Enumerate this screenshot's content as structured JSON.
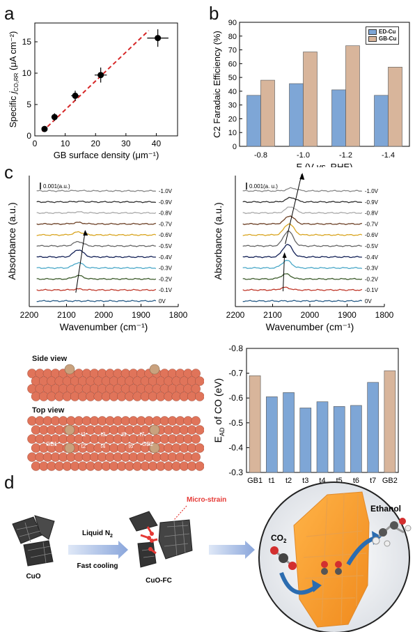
{
  "panels": {
    "a": "a",
    "b": "b",
    "c": "c",
    "d": "d"
  },
  "chart_data": [
    {
      "id": "a",
      "type": "scatter",
      "xlabel": "GB surface density (μm⁻¹)",
      "ylabel_parts": [
        "Specific ",
        "j",
        "CO₂RR",
        "(μA cm⁻²)"
      ],
      "xlim": [
        0,
        47
      ],
      "ylim": [
        0,
        18
      ],
      "xticks": [
        0,
        10,
        20,
        30,
        40
      ],
      "yticks": [
        0,
        5,
        10,
        15
      ],
      "x": [
        3.2,
        6.5,
        13.3,
        21.7,
        40.5
      ],
      "y": [
        1.1,
        3.0,
        6.4,
        9.7,
        15.6
      ],
      "xerr": [
        0.6,
        0.7,
        1.3,
        2.0,
        3.5
      ],
      "yerr": [
        0.3,
        0.6,
        0.8,
        1.2,
        1.4
      ],
      "fit": {
        "x0": 2.5,
        "y0": 0.7,
        "x1": 37.5,
        "y1": 16.8,
        "color": "#d62728"
      }
    },
    {
      "id": "b",
      "type": "bar",
      "title": "",
      "xlabel_parts": [
        "E (V ",
        "vs.",
        ")RHE"
      ],
      "xlabel": "E (V vs. RHE)",
      "ylabel": "C2 Faradaic Efficiency (%)",
      "categories": [
        "-0.8",
        "-1.0",
        "-1.2",
        "-1.4"
      ],
      "ylim": [
        0,
        90
      ],
      "yticks": [
        0,
        10,
        20,
        30,
        40,
        50,
        60,
        70,
        80,
        90
      ],
      "series": [
        {
          "name": "ED-Cu",
          "values": [
            37,
            45.5,
            41,
            37
          ],
          "color": "#7ea6d6"
        },
        {
          "name": "GB-Cu",
          "values": [
            48,
            68.5,
            73,
            57.5
          ],
          "color": "#d8b59b"
        }
      ],
      "legend": "top-right"
    },
    {
      "id": "c1",
      "type": "line",
      "xlabel": "Wavenumber (cm⁻¹)",
      "ylabel": "Absorbance (a.u.)",
      "xlim": [
        2200,
        1800
      ],
      "xticks": [
        2200,
        2100,
        2000,
        1900,
        1800
      ],
      "scale_label": "0.001(a.u.)",
      "series_labels": [
        "0V",
        "-0.1V",
        "-0.2V",
        "-0.3V",
        "-0.4V",
        "-0.5V",
        "-0.6V",
        "-0.7V",
        "-0.8V",
        "-0.9V",
        "-1.0V"
      ],
      "peak_center": 2068,
      "peak_heights": [
        0,
        0.1,
        0.35,
        0.55,
        0.75,
        0.45,
        0.3,
        0.15,
        0.1,
        0.05,
        0.03
      ],
      "colors": [
        "#2c5f8a",
        "#c0392b",
        "#3d5c2c",
        "#4aa8c8",
        "#111f55",
        "#666666",
        "#d9a521",
        "#6b3f24",
        "#a9a9a9",
        "#2e2e2e",
        "#888888"
      ]
    },
    {
      "id": "c2",
      "type": "line",
      "xlabel": "Wavenumber (cm⁻¹)",
      "ylabel": "Absorbance (a.u.)",
      "xlim": [
        2200,
        1800
      ],
      "xticks": [
        2200,
        2100,
        2000,
        1900,
        1800
      ],
      "scale_label": "0.001(a. u.)",
      "series_labels": [
        "0V",
        "-0.1V",
        "-0.2V",
        "-0.3V",
        "-0.4V",
        "-0.5V",
        "-0.6V",
        "-0.7V",
        "-0.8V",
        "-0.9V",
        "-1.0V"
      ],
      "peak_center": 2060,
      "peak_heights": [
        0,
        0.4,
        0.8,
        1.2,
        2.0,
        2.4,
        1.8,
        1.3,
        1.0,
        0.7,
        0.45
      ],
      "colors": [
        "#2c5f8a",
        "#c0392b",
        "#3d5c2c",
        "#4aa8c8",
        "#111f55",
        "#666666",
        "#d9a521",
        "#6b3f24",
        "#a9a9a9",
        "#2e2e2e",
        "#888888"
      ]
    },
    {
      "id": "c3",
      "type": "bar",
      "ylabel_parts": [
        "E",
        "AD",
        " of CO (eV)"
      ],
      "categories": [
        "GB1",
        "t1",
        "t2",
        "t3",
        "t4",
        "t5",
        "t6",
        "t7",
        "GB2"
      ],
      "values": [
        -0.69,
        -0.605,
        -0.622,
        -0.56,
        -0.585,
        -0.566,
        -0.57,
        -0.663,
        -0.71
      ],
      "colors": [
        "#d8b59b",
        "#7ea6d6",
        "#7ea6d6",
        "#7ea6d6",
        "#7ea6d6",
        "#7ea6d6",
        "#7ea6d6",
        "#7ea6d6",
        "#d8b59b"
      ],
      "ylim": [
        -0.3,
        -0.8
      ],
      "yticks": [
        -0.3,
        -0.4,
        -0.5,
        -0.6,
        -0.7,
        -0.8
      ]
    }
  ],
  "slab": {
    "side_view": "Side view",
    "top_view": "Top view",
    "site_labels": [
      "GB1",
      "t1",
      "t2",
      "t3",
      "t4",
      "t5",
      "t6",
      "t7",
      "GB2"
    ]
  },
  "scheme": {
    "cuo": "CuO",
    "cuo_fc": "CuO-FC",
    "liquid": "Liquid N",
    "liquid_sub": "2",
    "fast_cooling": "Fast cooling",
    "micro_strain": "Micro-strain",
    "co2": "CO",
    "co2_sub": "2",
    "ethanol": "Ethanol"
  }
}
